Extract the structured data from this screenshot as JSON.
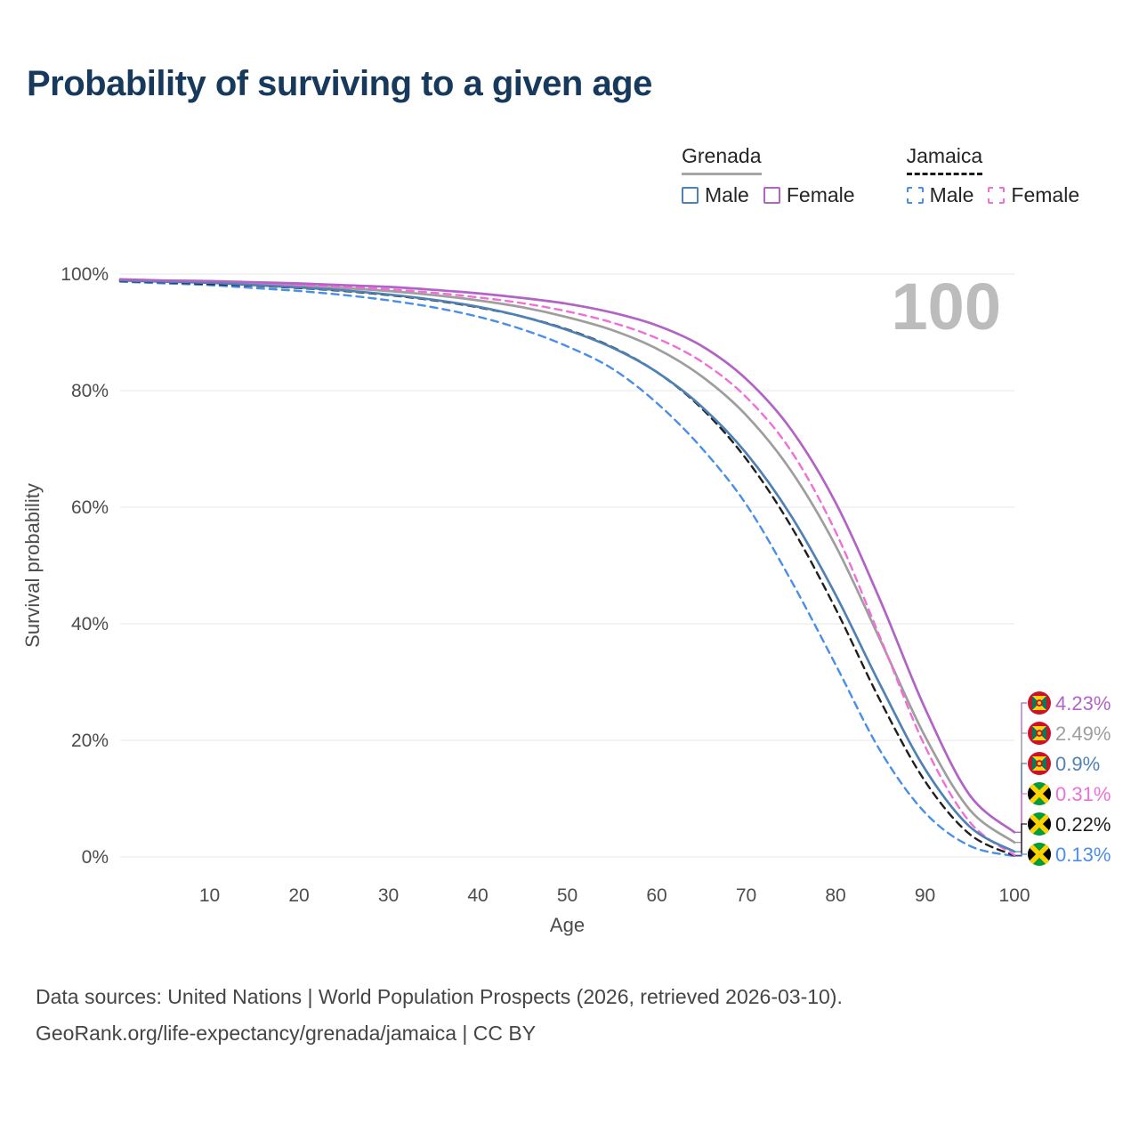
{
  "page": {
    "title": "Probability of surviving to a given age",
    "watermark": "100",
    "footer_line1": "Data sources: United Nations | World Population Prospects (2026, retrieved 2026-03-10).",
    "footer_line2": "GeoRank.org/life-expectancy/grenada/jamaica | CC BY"
  },
  "legend": {
    "groups": [
      {
        "label": "Grenada",
        "style": "solid",
        "underline_color": "#a6a6a6",
        "items": [
          {
            "label": "Male",
            "color": "#4f81b4",
            "dash": false
          },
          {
            "label": "Female",
            "color": "#b164c5",
            "dash": false
          }
        ]
      },
      {
        "label": "Jamaica",
        "style": "dashed",
        "underline_color": "#1a1a1a",
        "items": [
          {
            "label": "Male",
            "color": "#4a8ee8",
            "dash": true
          },
          {
            "label": "Female",
            "color": "#ef6fd8",
            "dash": true
          }
        ]
      }
    ]
  },
  "chart_data": {
    "type": "line",
    "title": "Probability of surviving to a given age",
    "xlabel": "Age",
    "ylabel": "Survival probability",
    "xlim": [
      0,
      100
    ],
    "ylim": [
      0,
      100
    ],
    "x_ticks": [
      10,
      20,
      30,
      40,
      50,
      60,
      70,
      80,
      90,
      100
    ],
    "y_tick_values": [
      0,
      20,
      40,
      60,
      80,
      100
    ],
    "y_tick_labels": [
      "0%",
      "20%",
      "40%",
      "60%",
      "80%",
      "100%"
    ],
    "grid": "horizontal",
    "legend_position": "top-right",
    "ages": [
      0,
      5,
      10,
      15,
      20,
      25,
      30,
      35,
      40,
      45,
      50,
      55,
      60,
      65,
      70,
      75,
      80,
      85,
      90,
      95,
      100
    ],
    "draw_order": [
      "grenada-all",
      "jamaica-male",
      "jamaica-all",
      "jamaica-female",
      "grenada-male",
      "grenada-female"
    ],
    "series": [
      {
        "id": "grenada-female",
        "country": "Grenada",
        "sex": "Female",
        "color": "#b164c5",
        "dashed": false,
        "end_label": "4.23%",
        "flag": "grenada",
        "values": [
          99.1,
          98.9,
          98.8,
          98.6,
          98.4,
          98.1,
          97.8,
          97.3,
          96.7,
          95.9,
          94.9,
          93.4,
          91.2,
          87.7,
          82.0,
          73.4,
          60.8,
          44.0,
          25.5,
          10.6,
          4.23
        ]
      },
      {
        "id": "grenada-all",
        "country": "Grenada",
        "sex": "Both",
        "color": "#9e9e9e",
        "dashed": false,
        "end_label": "2.49%",
        "flag": "grenada",
        "values": [
          99.0,
          98.8,
          98.6,
          98.3,
          98.0,
          97.6,
          97.1,
          96.4,
          95.5,
          94.3,
          92.6,
          90.4,
          87.2,
          82.5,
          75.8,
          66.3,
          53.4,
          37.2,
          20.7,
          8.1,
          2.49
        ]
      },
      {
        "id": "grenada-male",
        "country": "Grenada",
        "sex": "Male",
        "color": "#4f81b4",
        "dashed": false,
        "end_label": "0.9%",
        "flag": "grenada",
        "values": [
          98.9,
          98.7,
          98.5,
          98.1,
          97.7,
          97.2,
          96.5,
          95.6,
          94.4,
          92.7,
          90.4,
          87.4,
          83.2,
          77.3,
          69.3,
          58.6,
          45.0,
          29.5,
          15.1,
          5.2,
          0.9
        ]
      },
      {
        "id": "jamaica-female",
        "country": "Jamaica",
        "sex": "Female",
        "color": "#ef6fd8",
        "dashed": true,
        "end_label": "0.31%",
        "flag": "jamaica",
        "values": [
          99.0,
          98.8,
          98.6,
          98.4,
          98.1,
          97.8,
          97.4,
          96.8,
          96.0,
          95.0,
          93.6,
          91.7,
          89.0,
          85.0,
          78.9,
          69.7,
          55.8,
          37.6,
          19.0,
          6.0,
          0.31
        ]
      },
      {
        "id": "jamaica-all",
        "country": "Jamaica",
        "sex": "Both",
        "color": "#1f1f1f",
        "dashed": true,
        "end_label": "0.22%",
        "flag": "jamaica",
        "values": [
          98.8,
          98.6,
          98.3,
          98.0,
          97.6,
          97.1,
          96.4,
          95.5,
          94.3,
          92.7,
          90.5,
          87.5,
          83.2,
          77.0,
          68.3,
          56.8,
          42.6,
          26.8,
          13.0,
          3.9,
          0.22
        ]
      },
      {
        "id": "jamaica-male",
        "country": "Jamaica",
        "sex": "Male",
        "color": "#4a8ee8",
        "dashed": true,
        "end_label": "0.13%",
        "flag": "jamaica",
        "values": [
          98.7,
          98.4,
          98.1,
          97.6,
          97.1,
          96.4,
          95.5,
          94.3,
          92.7,
          90.5,
          87.6,
          83.8,
          77.9,
          70.2,
          60.5,
          47.5,
          33.0,
          18.2,
          7.6,
          1.9,
          0.13
        ]
      }
    ]
  }
}
